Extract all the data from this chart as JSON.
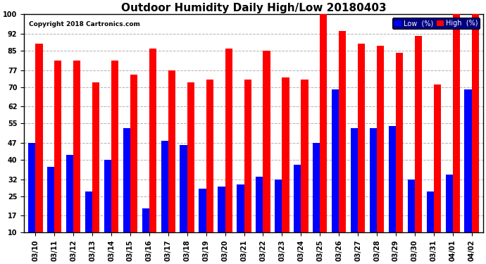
{
  "title": "Outdoor Humidity Daily High/Low 20180403",
  "copyright": "Copyright 2018 Cartronics.com",
  "dates": [
    "03/10",
    "03/11",
    "03/12",
    "03/13",
    "03/14",
    "03/15",
    "03/16",
    "03/17",
    "03/18",
    "03/19",
    "03/20",
    "03/21",
    "03/22",
    "03/23",
    "03/24",
    "03/25",
    "03/26",
    "03/27",
    "03/28",
    "03/29",
    "03/30",
    "03/31",
    "04/01",
    "04/02"
  ],
  "high": [
    88,
    81,
    81,
    72,
    81,
    75,
    86,
    77,
    72,
    73,
    86,
    73,
    85,
    74,
    73,
    100,
    93,
    88,
    87,
    84,
    91,
    71,
    100,
    100
  ],
  "low": [
    47,
    37,
    42,
    27,
    40,
    53,
    20,
    48,
    46,
    28,
    29,
    30,
    33,
    32,
    38,
    47,
    69,
    53,
    53,
    54,
    32,
    27,
    34,
    69
  ],
  "high_color": "#ff0000",
  "low_color": "#0000ff",
  "bg_color": "#ffffff",
  "grid_color": "#b0b0b0",
  "ylim": [
    10,
    100
  ],
  "yticks": [
    10,
    17,
    25,
    32,
    40,
    47,
    55,
    62,
    70,
    77,
    85,
    92,
    100
  ],
  "bar_width": 0.38,
  "title_fontsize": 11,
  "tick_fontsize": 7,
  "legend_low_label": "Low  (%)",
  "legend_high_label": "High  (%)"
}
